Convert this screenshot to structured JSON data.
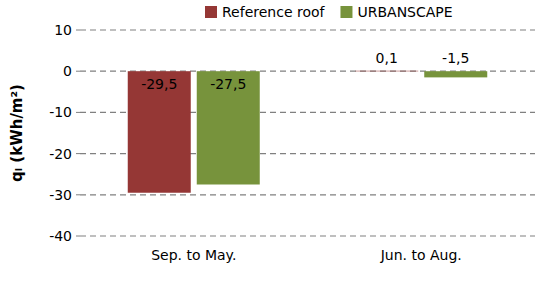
{
  "chart_data": {
    "type": "bar",
    "y_label": "qₗ (kWh/m²)",
    "categories": [
      "Sep. to May.",
      "Jun. to Aug."
    ],
    "series": [
      {
        "name": "Reference roof",
        "color": "#953735",
        "values": [
          -29.5,
          0.1
        ],
        "value_labels": [
          "-29,5",
          "0,1"
        ]
      },
      {
        "name": "URBANSCAPE",
        "color": "#77933c",
        "values": [
          -27.5,
          -1.5
        ],
        "value_labels": [
          "-27,5",
          "-1,5"
        ]
      }
    ],
    "ylim": [
      -40,
      10
    ],
    "yticks": [
      -40,
      -30,
      -20,
      -10,
      0,
      10
    ],
    "grid": true,
    "legend": "top",
    "data_labels": true
  }
}
